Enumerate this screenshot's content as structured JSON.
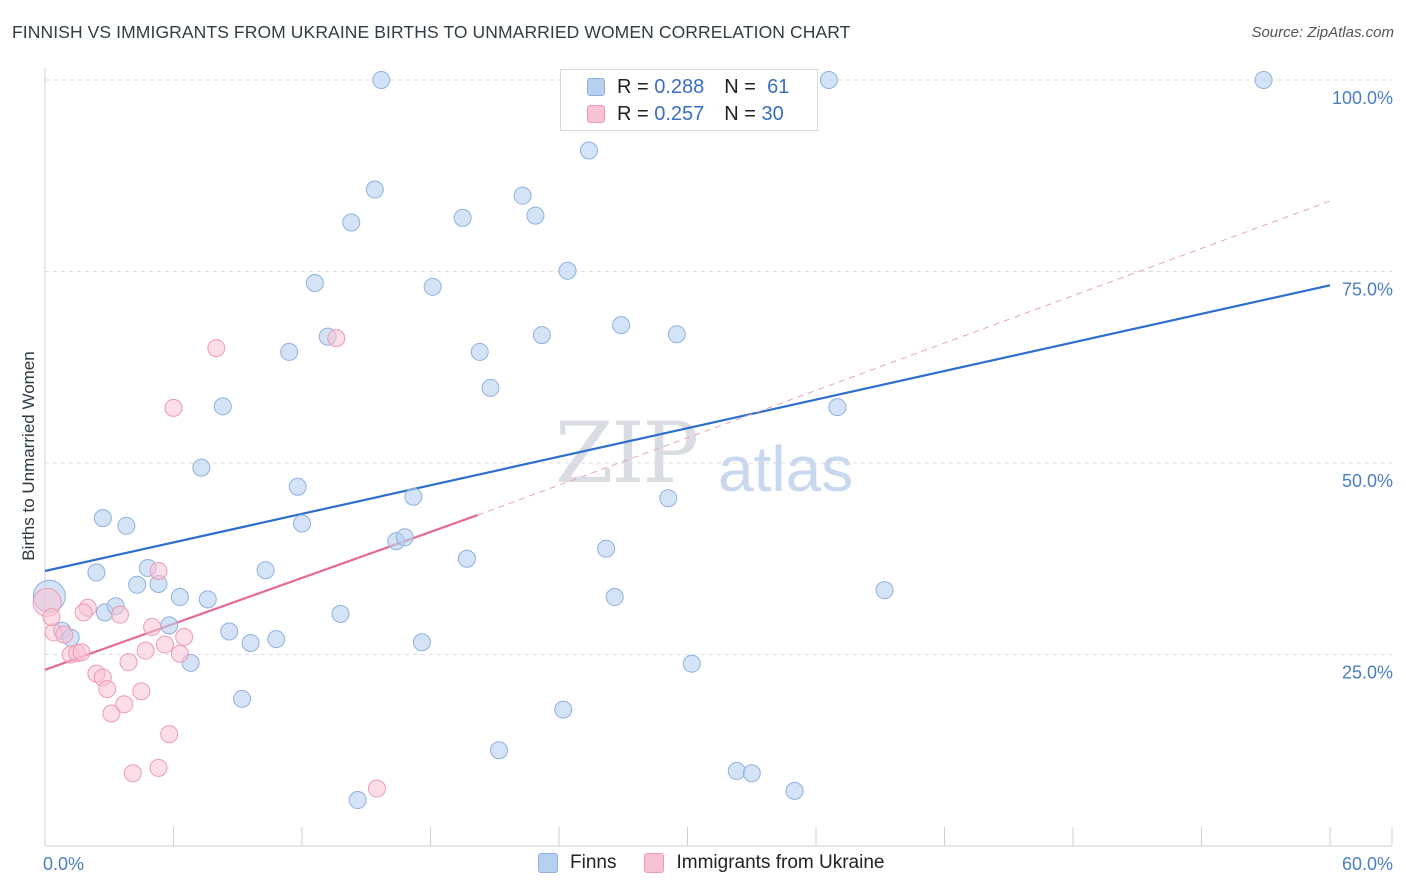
{
  "title": "FINNISH VS IMMIGRANTS FROM UKRAINE BIRTHS TO UNMARRIED WOMEN CORRELATION CHART",
  "source": "Source: ZipAtlas.com",
  "watermark": {
    "part1": "ZIP",
    "part2": "atlas"
  },
  "legend": {
    "r_label": "R =",
    "n_label": "N =",
    "rows": [
      {
        "r": "0.288",
        "n": "61"
      },
      {
        "r": "0.257",
        "n": "30"
      }
    ]
  },
  "colors": {
    "finns_fill": "#b8d0ef",
    "finns_stroke": "#8fb1e0",
    "finns_line": "#2f6fcc",
    "ukraine_fill": "#f7c3d3",
    "ukraine_stroke": "#ee9ab5",
    "ukraine_line": "#e36b95",
    "grid": "#dddddd"
  },
  "chart_data": {
    "type": "scatter",
    "title": "FINNISH VS IMMIGRANTS FROM UKRAINE BIRTHS TO UNMARRIED WOMEN CORRELATION CHART",
    "xlabel": "",
    "ylabel": "Births to Unmarried Women",
    "xlim": [
      0,
      60
    ],
    "ylim": [
      0,
      100
    ],
    "x_tick_labels": [
      "0.0%",
      "60.0%"
    ],
    "y_tick_labels": [
      "100.0%",
      "75.0%",
      "50.0%",
      "25.0%"
    ],
    "y_tick_values": [
      100,
      75,
      50,
      25
    ],
    "series": [
      {
        "name": "Finns",
        "r": 0.288,
        "n": 61,
        "trend": {
          "x0": 0,
          "y0": 35.9,
          "x1": 60,
          "y1": 73.2
        },
        "points": [
          [
            0.2,
            32.6
          ],
          [
            0.8,
            28.1
          ],
          [
            1.2,
            27.2
          ],
          [
            2.4,
            35.7
          ],
          [
            2.8,
            30.5
          ],
          [
            2.7,
            42.8
          ],
          [
            3.3,
            31.3
          ],
          [
            3.8,
            41.8
          ],
          [
            4.3,
            34.1
          ],
          [
            4.8,
            36.3
          ],
          [
            5.3,
            34.2
          ],
          [
            5.8,
            28.8
          ],
          [
            6.3,
            32.5
          ],
          [
            6.8,
            23.9
          ],
          [
            7.3,
            49.4
          ],
          [
            7.6,
            32.2
          ],
          [
            8.3,
            57.4
          ],
          [
            8.6,
            28.0
          ],
          [
            9.2,
            19.2
          ],
          [
            9.6,
            26.5
          ],
          [
            10.3,
            36.0
          ],
          [
            10.8,
            27.0
          ],
          [
            11.4,
            64.5
          ],
          [
            11.8,
            46.9
          ],
          [
            12.0,
            42.1
          ],
          [
            12.6,
            73.5
          ],
          [
            13.2,
            66.5
          ],
          [
            13.8,
            30.3
          ],
          [
            14.3,
            81.4
          ],
          [
            14.6,
            6.0
          ],
          [
            15.4,
            85.7
          ],
          [
            15.7,
            100.0
          ],
          [
            16.4,
            39.8
          ],
          [
            16.8,
            40.3
          ],
          [
            17.2,
            45.6
          ],
          [
            17.6,
            26.6
          ],
          [
            18.1,
            73.0
          ],
          [
            19.5,
            82.0
          ],
          [
            19.7,
            37.5
          ],
          [
            20.3,
            64.5
          ],
          [
            20.8,
            59.8
          ],
          [
            21.2,
            12.5
          ],
          [
            22.3,
            84.9
          ],
          [
            22.9,
            82.3
          ],
          [
            23.2,
            66.7
          ],
          [
            24.2,
            17.8
          ],
          [
            24.4,
            75.1
          ],
          [
            25.4,
            90.8
          ],
          [
            26.2,
            38.8
          ],
          [
            26.6,
            32.5
          ],
          [
            26.9,
            68.0
          ],
          [
            29.1,
            45.4
          ],
          [
            29.5,
            66.8
          ],
          [
            30.2,
            23.8
          ],
          [
            32.3,
            9.8
          ],
          [
            33.0,
            9.5
          ],
          [
            35.0,
            7.2
          ],
          [
            36.6,
            100.0
          ],
          [
            37.0,
            57.3
          ],
          [
            39.2,
            33.4
          ],
          [
            56.9,
            100.0
          ]
        ]
      },
      {
        "name": "Immigrants from Ukraine",
        "r": 0.257,
        "n": 30,
        "trend": {
          "x0": 0,
          "y0": 23.0,
          "x1": 20.2,
          "y1": 43.2,
          "dashed_x1": 60,
          "dashed_y1": 84.2
        },
        "points": [
          [
            0.1,
            31.8
          ],
          [
            0.4,
            27.9
          ],
          [
            0.9,
            27.6
          ],
          [
            1.2,
            25.0
          ],
          [
            1.5,
            25.2
          ],
          [
            1.7,
            25.3
          ],
          [
            2.0,
            31.1
          ],
          [
            2.4,
            22.5
          ],
          [
            2.7,
            22.0
          ],
          [
            2.9,
            20.5
          ],
          [
            3.1,
            17.3
          ],
          [
            3.5,
            30.2
          ],
          [
            3.7,
            18.5
          ],
          [
            3.9,
            24.0
          ],
          [
            4.1,
            9.5
          ],
          [
            4.5,
            20.2
          ],
          [
            4.7,
            25.5
          ],
          [
            5.0,
            28.6
          ],
          [
            5.3,
            10.2
          ],
          [
            5.3,
            35.9
          ],
          [
            5.6,
            26.3
          ],
          [
            5.8,
            14.6
          ],
          [
            6.0,
            57.2
          ],
          [
            6.3,
            25.1
          ],
          [
            6.5,
            27.3
          ],
          [
            8.0,
            65.0
          ],
          [
            13.6,
            66.3
          ],
          [
            15.5,
            7.5
          ],
          [
            0.3,
            29.9
          ],
          [
            1.8,
            30.5
          ]
        ]
      }
    ]
  },
  "bottom_legend": [
    "Finns",
    "Immigrants from Ukraine"
  ]
}
